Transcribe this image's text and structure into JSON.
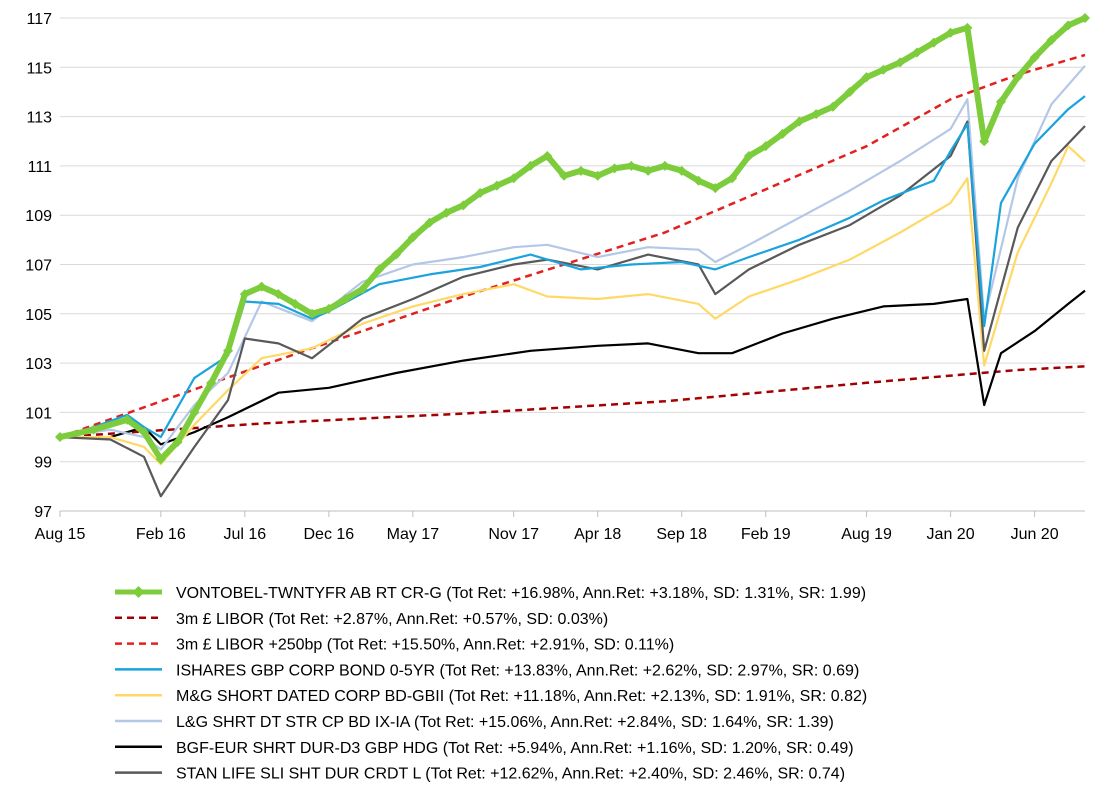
{
  "chart_data": {
    "type": "line",
    "title": "",
    "xlabel": "",
    "ylabel": "",
    "ylim": [
      97,
      117
    ],
    "yticks": [
      97,
      99,
      101,
      103,
      105,
      107,
      109,
      111,
      113,
      115,
      117
    ],
    "x_tick_labels": [
      "Aug 15",
      "Feb 16",
      "Jul 16",
      "Dec 16",
      "May 17",
      "Nov 17",
      "Apr 18",
      "Sep 18",
      "Feb 19",
      "Aug 19",
      "Jan 20",
      "Jun 20"
    ],
    "x_tick_dates": [
      "2015-08",
      "2016-02",
      "2016-07",
      "2016-12",
      "2017-05",
      "2017-11",
      "2018-04",
      "2018-09",
      "2019-02",
      "2019-08",
      "2020-01",
      "2020-06"
    ],
    "grid": "horizontal",
    "legend_position": "bottom",
    "series": [
      {
        "name": "VONTOBEL-TWNTYFR AB RT CR-G (Tot Ret: +16.98%, Ann.Ret: +3.18%, SD: 1.31%, SR: 1.99)",
        "color": "#7dcc3c",
        "style": "solid-diamond",
        "points": [
          [
            "2015-08",
            100.0
          ],
          [
            "2015-10",
            100.3
          ],
          [
            "2015-12",
            100.7
          ],
          [
            "2016-01",
            100.2
          ],
          [
            "2016-02",
            99.1
          ],
          [
            "2016-03",
            99.8
          ],
          [
            "2016-04",
            101.0
          ],
          [
            "2016-05",
            102.2
          ],
          [
            "2016-06",
            103.5
          ],
          [
            "2016-07",
            105.8
          ],
          [
            "2016-08",
            106.1
          ],
          [
            "2016-09",
            105.8
          ],
          [
            "2016-10",
            105.4
          ],
          [
            "2016-11",
            105.0
          ],
          [
            "2016-12",
            105.2
          ],
          [
            "2017-01",
            105.6
          ],
          [
            "2017-02",
            106.0
          ],
          [
            "2017-03",
            106.8
          ],
          [
            "2017-04",
            107.4
          ],
          [
            "2017-05",
            108.1
          ],
          [
            "2017-06",
            108.7
          ],
          [
            "2017-07",
            109.1
          ],
          [
            "2017-08",
            109.4
          ],
          [
            "2017-09",
            109.9
          ],
          [
            "2017-10",
            110.2
          ],
          [
            "2017-11",
            110.5
          ],
          [
            "2017-12",
            111.0
          ],
          [
            "2018-01",
            111.4
          ],
          [
            "2018-02",
            110.6
          ],
          [
            "2018-03",
            110.8
          ],
          [
            "2018-04",
            110.6
          ],
          [
            "2018-05",
            110.9
          ],
          [
            "2018-06",
            111.0
          ],
          [
            "2018-07",
            110.8
          ],
          [
            "2018-08",
            111.0
          ],
          [
            "2018-09",
            110.8
          ],
          [
            "2018-10",
            110.4
          ],
          [
            "2018-11",
            110.1
          ],
          [
            "2018-12",
            110.5
          ],
          [
            "2019-01",
            111.4
          ],
          [
            "2019-02",
            111.8
          ],
          [
            "2019-03",
            112.3
          ],
          [
            "2019-04",
            112.8
          ],
          [
            "2019-05",
            113.1
          ],
          [
            "2019-06",
            113.4
          ],
          [
            "2019-07",
            114.0
          ],
          [
            "2019-08",
            114.6
          ],
          [
            "2019-09",
            114.9
          ],
          [
            "2019-10",
            115.2
          ],
          [
            "2019-11",
            115.6
          ],
          [
            "2019-12",
            116.0
          ],
          [
            "2020-01",
            116.4
          ],
          [
            "2020-02",
            116.6
          ],
          [
            "2020-03",
            112.0
          ],
          [
            "2020-04",
            113.6
          ],
          [
            "2020-05",
            114.6
          ],
          [
            "2020-06",
            115.4
          ],
          [
            "2020-07",
            116.1
          ],
          [
            "2020-08",
            116.7
          ],
          [
            "2020-09",
            117.0
          ]
        ]
      },
      {
        "name": "3m £ LIBOR (Tot Ret: +2.87%, Ann.Ret: +0.57%, SD: 0.03%)",
        "color": "#a50000",
        "style": "dashed",
        "points": [
          [
            "2015-08",
            100.0
          ],
          [
            "2016-08",
            100.55
          ],
          [
            "2017-08",
            100.95
          ],
          [
            "2018-08",
            101.45
          ],
          [
            "2019-08",
            102.2
          ],
          [
            "2020-02",
            102.55
          ],
          [
            "2020-05",
            102.72
          ],
          [
            "2020-09",
            102.87
          ]
        ]
      },
      {
        "name": "3m £ LIBOR +250bp (Tot Ret: +15.50%, Ann.Ret: +2.91%, SD: 0.11%)",
        "color": "#e32020",
        "style": "dashed",
        "points": [
          [
            "2015-08",
            100.0
          ],
          [
            "2016-08",
            102.9
          ],
          [
            "2017-08",
            105.7
          ],
          [
            "2018-08",
            108.3
          ],
          [
            "2019-08",
            111.8
          ],
          [
            "2020-01",
            113.7
          ],
          [
            "2020-05",
            114.7
          ],
          [
            "2020-09",
            115.5
          ]
        ]
      },
      {
        "name": "ISHARES GBP CORP BOND 0-5YR (Tot Ret: +13.83%, Ann.Ret: +2.62%, SD: 2.97%, SR: 0.69)",
        "color": "#1aa3dd",
        "style": "solid",
        "points": [
          [
            "2015-08",
            100.0
          ],
          [
            "2015-10",
            100.4
          ],
          [
            "2015-12",
            100.9
          ],
          [
            "2016-01",
            100.4
          ],
          [
            "2016-02",
            100.0
          ],
          [
            "2016-04",
            102.4
          ],
          [
            "2016-06",
            103.3
          ],
          [
            "2016-07",
            105.5
          ],
          [
            "2016-09",
            105.4
          ],
          [
            "2016-11",
            104.8
          ],
          [
            "2016-12",
            105.1
          ],
          [
            "2017-03",
            106.2
          ],
          [
            "2017-06",
            106.6
          ],
          [
            "2017-09",
            106.9
          ],
          [
            "2017-12",
            107.4
          ],
          [
            "2018-03",
            106.8
          ],
          [
            "2018-06",
            107.0
          ],
          [
            "2018-09",
            107.1
          ],
          [
            "2018-11",
            106.8
          ],
          [
            "2019-01",
            107.3
          ],
          [
            "2019-04",
            108.0
          ],
          [
            "2019-07",
            108.9
          ],
          [
            "2019-09",
            109.6
          ],
          [
            "2019-12",
            110.4
          ],
          [
            "2020-01",
            111.6
          ],
          [
            "2020-02",
            112.7
          ],
          [
            "2020-03",
            104.5
          ],
          [
            "2020-04",
            109.5
          ],
          [
            "2020-06",
            111.9
          ],
          [
            "2020-08",
            113.3
          ],
          [
            "2020-09",
            113.83
          ]
        ]
      },
      {
        "name": "M&G SHORT DATED CORP BD-GBII (Tot Ret: +11.18%, Ann.Ret: +2.13%, SD: 1.91%, SR: 0.82)",
        "color": "#ffd966",
        "style": "solid",
        "points": [
          [
            "2015-08",
            100.0
          ],
          [
            "2015-11",
            100.0
          ],
          [
            "2016-01",
            99.6
          ],
          [
            "2016-02",
            98.9
          ],
          [
            "2016-04",
            100.5
          ],
          [
            "2016-06",
            101.9
          ],
          [
            "2016-08",
            103.2
          ],
          [
            "2016-11",
            103.6
          ],
          [
            "2017-02",
            104.6
          ],
          [
            "2017-05",
            105.3
          ],
          [
            "2017-08",
            105.8
          ],
          [
            "2017-11",
            106.2
          ],
          [
            "2018-01",
            105.7
          ],
          [
            "2018-04",
            105.6
          ],
          [
            "2018-07",
            105.8
          ],
          [
            "2018-10",
            105.4
          ],
          [
            "2018-11",
            104.8
          ],
          [
            "2019-01",
            105.7
          ],
          [
            "2019-04",
            106.4
          ],
          [
            "2019-07",
            107.2
          ],
          [
            "2019-10",
            108.3
          ],
          [
            "2020-01",
            109.5
          ],
          [
            "2020-02",
            110.5
          ],
          [
            "2020-03",
            102.9
          ],
          [
            "2020-05",
            107.5
          ],
          [
            "2020-07",
            110.3
          ],
          [
            "2020-08",
            111.8
          ],
          [
            "2020-09",
            111.18
          ]
        ]
      },
      {
        "name": "L&G SHRT DT STR CP BD IX-IA (Tot Ret: +15.06%, Ann.Ret: +2.84%, SD: 1.64%, SR: 1.39)",
        "color": "#b4c7e7",
        "style": "solid",
        "points": [
          [
            "2015-08",
            100.0
          ],
          [
            "2015-11",
            100.3
          ],
          [
            "2016-01",
            100.0
          ],
          [
            "2016-02",
            99.5
          ],
          [
            "2016-04",
            101.3
          ],
          [
            "2016-06",
            102.6
          ],
          [
            "2016-08",
            105.5
          ],
          [
            "2016-11",
            104.7
          ],
          [
            "2017-02",
            106.3
          ],
          [
            "2017-05",
            107.0
          ],
          [
            "2017-08",
            107.3
          ],
          [
            "2017-11",
            107.7
          ],
          [
            "2018-01",
            107.8
          ],
          [
            "2018-04",
            107.3
          ],
          [
            "2018-07",
            107.7
          ],
          [
            "2018-10",
            107.6
          ],
          [
            "2018-11",
            107.1
          ],
          [
            "2019-01",
            107.8
          ],
          [
            "2019-04",
            108.9
          ],
          [
            "2019-07",
            110.0
          ],
          [
            "2019-10",
            111.2
          ],
          [
            "2020-01",
            112.5
          ],
          [
            "2020-02",
            113.7
          ],
          [
            "2020-03",
            104.8
          ],
          [
            "2020-05",
            110.5
          ],
          [
            "2020-07",
            113.5
          ],
          [
            "2020-09",
            115.06
          ]
        ]
      },
      {
        "name": "BGF-EUR SHRT DUR-D3 GBP HDG (Tot Ret: +5.94%, Ann.Ret: +1.16%, SD: 1.20%, SR: 0.49)",
        "color": "#000000",
        "style": "solid",
        "points": [
          [
            "2015-08",
            100.0
          ],
          [
            "2015-11",
            100.0
          ],
          [
            "2016-01",
            100.4
          ],
          [
            "2016-02",
            99.7
          ],
          [
            "2016-04",
            100.2
          ],
          [
            "2016-06",
            100.8
          ],
          [
            "2016-09",
            101.8
          ],
          [
            "2016-12",
            102.0
          ],
          [
            "2017-04",
            102.6
          ],
          [
            "2017-08",
            103.1
          ],
          [
            "2017-12",
            103.5
          ],
          [
            "2018-04",
            103.7
          ],
          [
            "2018-07",
            103.8
          ],
          [
            "2018-10",
            103.4
          ],
          [
            "2018-12",
            103.4
          ],
          [
            "2019-03",
            104.2
          ],
          [
            "2019-06",
            104.8
          ],
          [
            "2019-09",
            105.3
          ],
          [
            "2019-12",
            105.4
          ],
          [
            "2020-02",
            105.6
          ],
          [
            "2020-03",
            101.3
          ],
          [
            "2020-04",
            103.4
          ],
          [
            "2020-06",
            104.3
          ],
          [
            "2020-08",
            105.4
          ],
          [
            "2020-09",
            105.94
          ]
        ]
      },
      {
        "name": "STAN LIFE SLI SHT DUR CRDT L (Tot Ret: +12.62%, Ann.Ret: +2.40%, SD: 2.46%, SR: 0.74)",
        "color": "#595959",
        "style": "solid",
        "points": [
          [
            "2015-08",
            100.0
          ],
          [
            "2015-11",
            99.9
          ],
          [
            "2016-01",
            99.2
          ],
          [
            "2016-02",
            97.6
          ],
          [
            "2016-04",
            99.6
          ],
          [
            "2016-06",
            101.5
          ],
          [
            "2016-07",
            104.0
          ],
          [
            "2016-09",
            103.8
          ],
          [
            "2016-11",
            103.2
          ],
          [
            "2017-02",
            104.8
          ],
          [
            "2017-05",
            105.6
          ],
          [
            "2017-08",
            106.5
          ],
          [
            "2017-11",
            107.0
          ],
          [
            "2018-01",
            107.2
          ],
          [
            "2018-04",
            106.8
          ],
          [
            "2018-07",
            107.4
          ],
          [
            "2018-10",
            107.0
          ],
          [
            "2018-11",
            105.8
          ],
          [
            "2019-01",
            106.8
          ],
          [
            "2019-04",
            107.8
          ],
          [
            "2019-07",
            108.6
          ],
          [
            "2019-10",
            109.8
          ],
          [
            "2020-01",
            111.4
          ],
          [
            "2020-02",
            112.8
          ],
          [
            "2020-03",
            103.5
          ],
          [
            "2020-05",
            108.5
          ],
          [
            "2020-07",
            111.2
          ],
          [
            "2020-09",
            112.62
          ]
        ]
      }
    ]
  }
}
